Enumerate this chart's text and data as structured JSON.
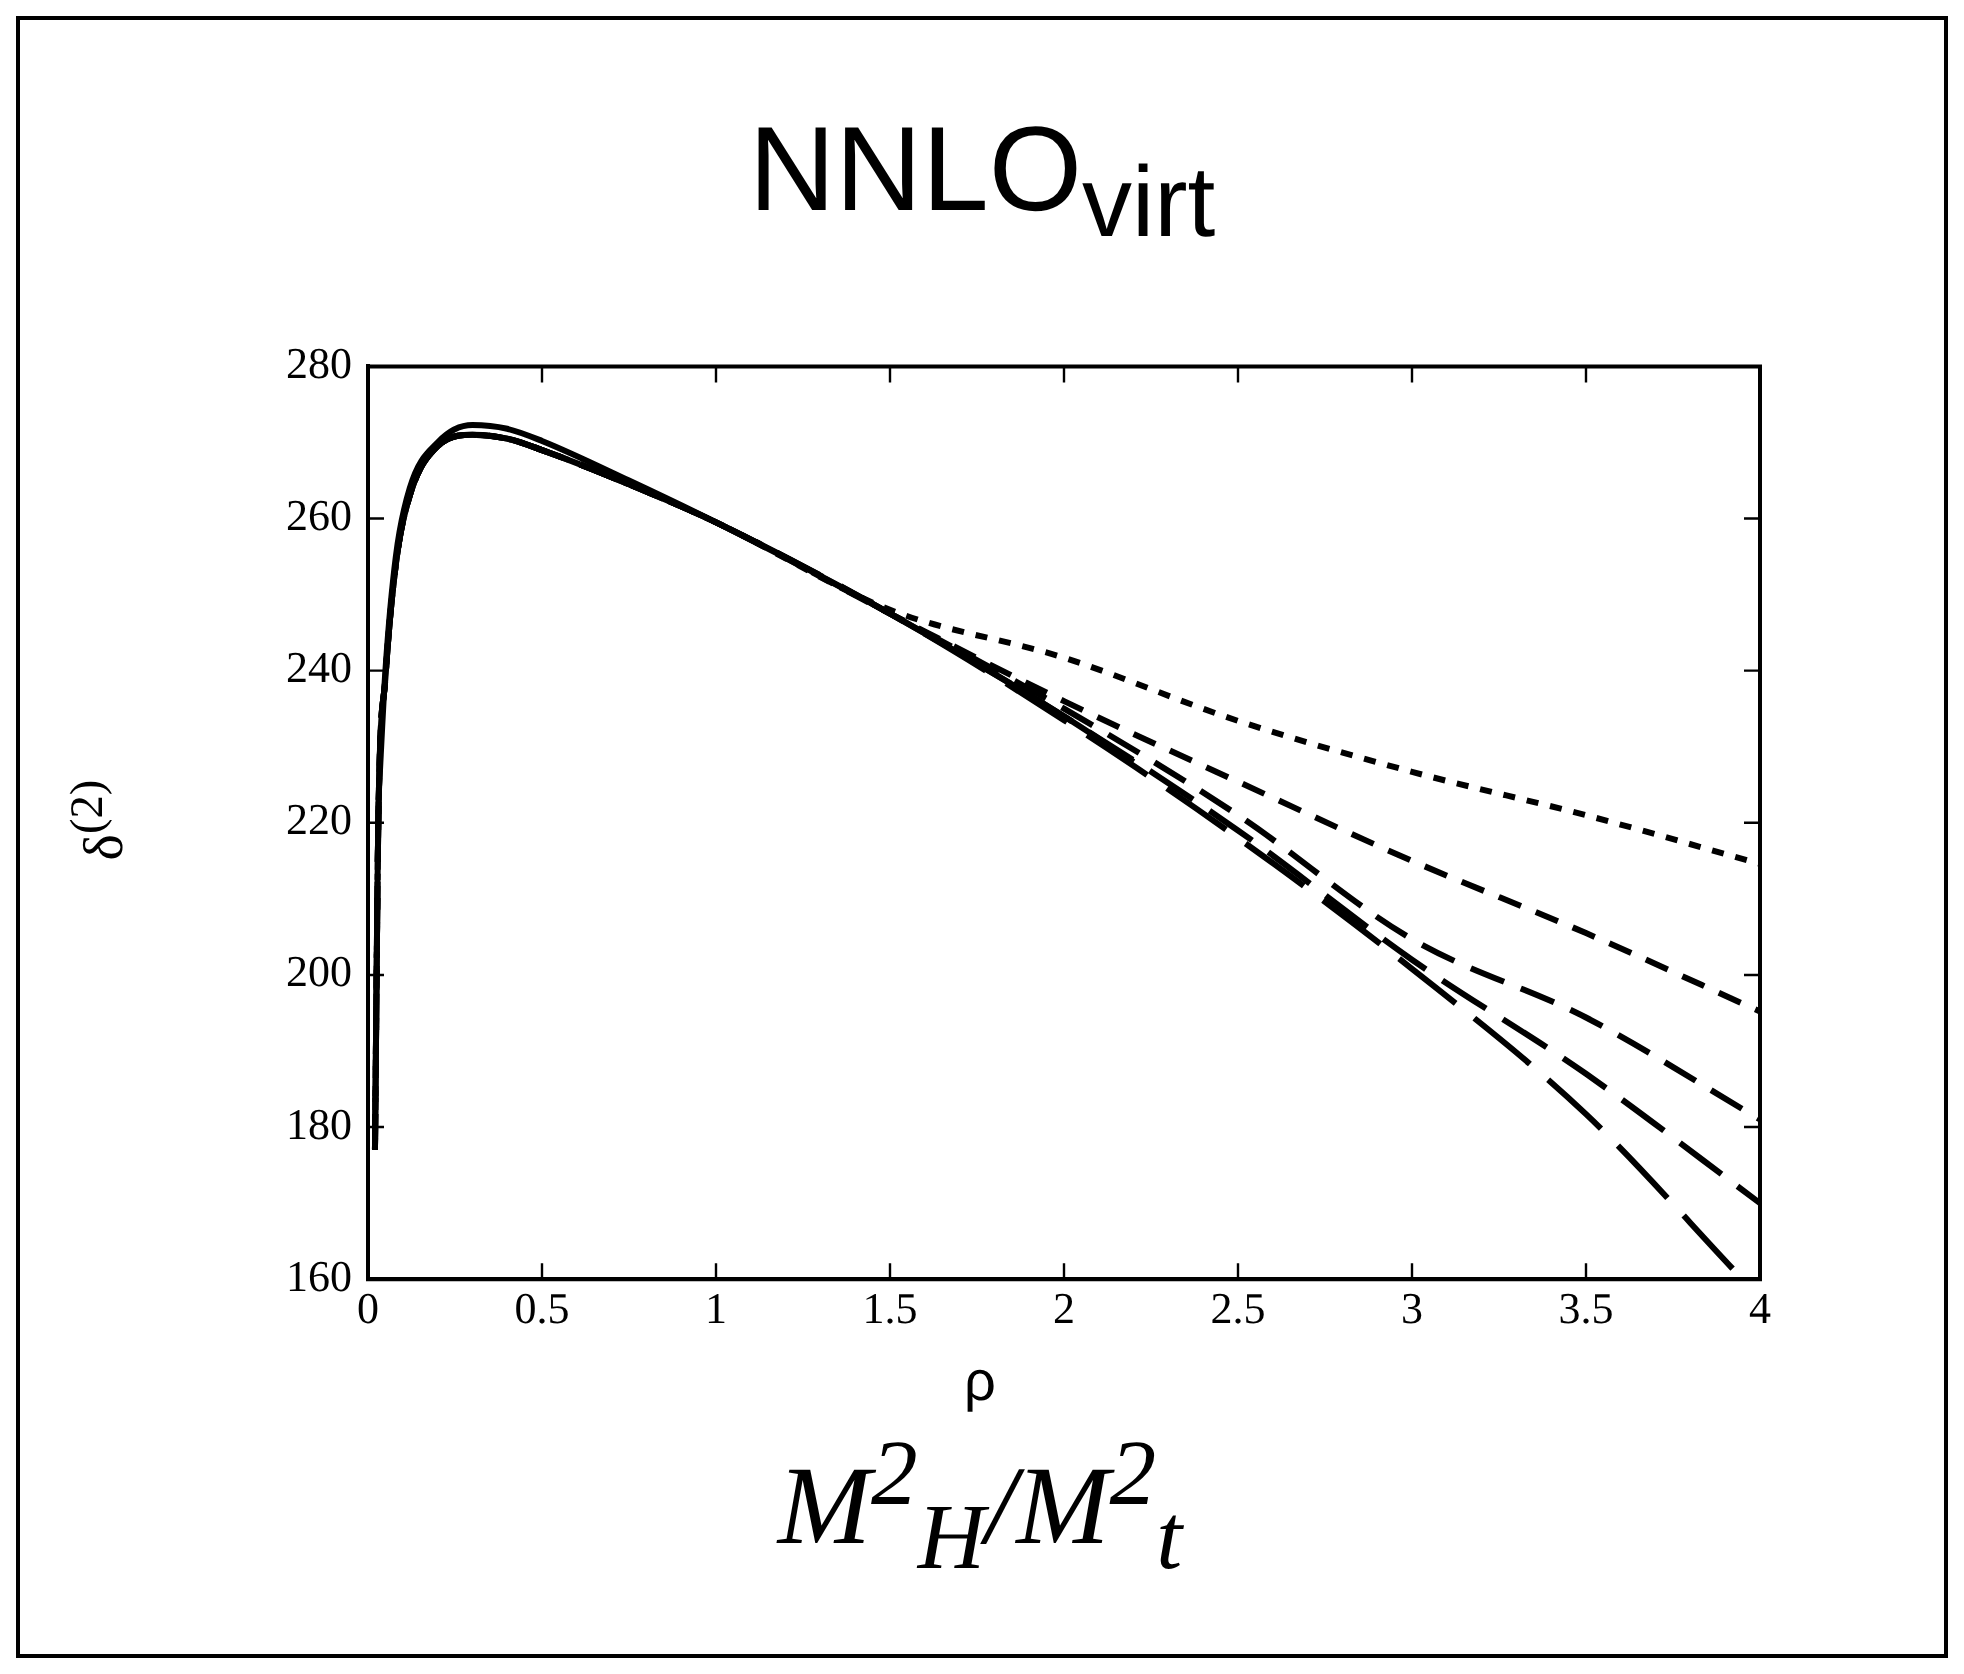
{
  "chart_data": {
    "type": "line",
    "title": "NNLO$_{virt}$",
    "xlabel": "ρ",
    "ylabel": "δ$^{(2)}$",
    "annotations": [
      "M$^{2}$$_{H}$/M$^{2}$$_{t}$"
    ],
    "xlim": [
      0,
      4
    ],
    "xticks": [
      0,
      0.5,
      1,
      1.5,
      2,
      2.5,
      3,
      3.5,
      4
    ],
    "ylim": [
      160,
      280
    ],
    "yticks": [
      160,
      180,
      200,
      220,
      240,
      260,
      280
    ],
    "grid": false,
    "legend": false,
    "marker": "none",
    "series": [
      {
        "color": "#000000",
        "line_style": "solid",
        "x": [
          0.03,
          0.05,
          0.08,
          0.12,
          0.2,
          0.3,
          0.4,
          0.5,
          0.75,
          1,
          1.5,
          2,
          2.2
        ],
        "values": [
          223,
          240,
          255,
          264,
          270,
          272.3,
          271.8,
          270.2,
          265,
          259.5,
          247.5,
          234,
          228
        ]
      },
      {
        "color": "#000000",
        "line_style": "dashed",
        "x": [
          0.02,
          0.03,
          0.05,
          0.08,
          0.12,
          0.2,
          0.3,
          0.4,
          0.5,
          0.75,
          1,
          1.5,
          2,
          2.5,
          3,
          3.5,
          4
        ],
        "values": [
          177,
          221,
          239,
          254,
          263,
          269.5,
          271,
          270.5,
          269,
          264.5,
          259.5,
          248,
          241.7,
          233.4,
          226.7,
          221,
          214.6
        ]
      },
      {
        "color": "#000000",
        "line_style": "dashed",
        "x": [
          0.02,
          0.03,
          0.05,
          0.08,
          0.12,
          0.2,
          0.3,
          0.4,
          0.5,
          0.75,
          1,
          1.5,
          2,
          2.5,
          3,
          3.5,
          4
        ],
        "values": [
          177,
          221,
          239,
          254,
          263,
          269.5,
          271,
          270.5,
          269,
          264.5,
          259.5,
          247.5,
          236,
          225.4,
          215,
          205.5,
          195.2
        ]
      },
      {
        "color": "#000000",
        "line_style": "dashed",
        "x": [
          0.02,
          0.03,
          0.05,
          0.08,
          0.12,
          0.2,
          0.3,
          0.4,
          0.5,
          0.75,
          1,
          1.5,
          2,
          2.5,
          3,
          3.5,
          4
        ],
        "values": [
          177,
          221,
          239,
          254,
          263,
          269.5,
          271,
          270.5,
          269,
          264.5,
          259.5,
          247.5,
          235,
          221,
          204.7,
          194.4,
          181
        ]
      },
      {
        "color": "#000000",
        "line_style": "dashed",
        "x": [
          0.02,
          0.03,
          0.05,
          0.08,
          0.12,
          0.2,
          0.3,
          0.4,
          0.5,
          0.75,
          1,
          1.5,
          2,
          2.5,
          3,
          3.5,
          4
        ],
        "values": [
          177,
          221,
          239,
          254,
          263,
          269.5,
          271,
          270.5,
          269,
          264.5,
          259.5,
          247.5,
          234,
          219,
          202,
          187,
          170
        ]
      },
      {
        "color": "#000000",
        "line_style": "dashed",
        "x": [
          0.02,
          0.03,
          0.05,
          0.08,
          0.12,
          0.2,
          0.3,
          0.4,
          0.5,
          0.75,
          1,
          1.5,
          2,
          2.5,
          3,
          3.5,
          3.95
        ],
        "values": [
          177,
          221,
          239,
          254,
          263,
          269.5,
          271,
          270.5,
          269,
          264.5,
          259.5,
          247.5,
          233.5,
          218,
          200.8,
          181.7,
          160
        ]
      }
    ]
  }
}
